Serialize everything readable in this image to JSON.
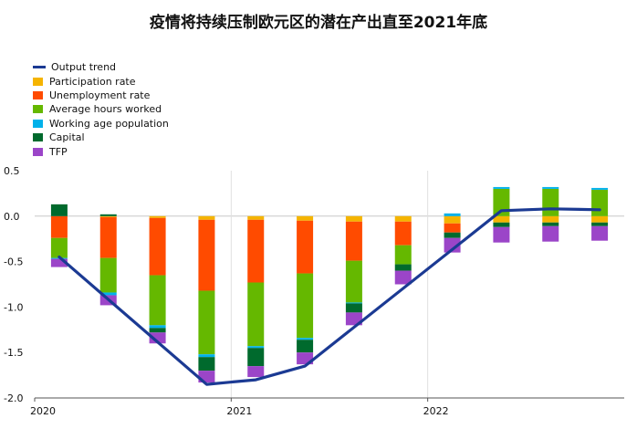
{
  "title": "疫情将持续压制欧元区的潜在产出直至2021年底",
  "chart_data": {
    "type": "bar",
    "stacked": true,
    "title": "疫情将持续压制欧元区的潜在产出直至2021年底",
    "xlabel": "",
    "ylabel": "",
    "ylim": [
      -2.0,
      0.5
    ],
    "yticks": [
      0.5,
      0.0,
      -0.5,
      -1.0,
      -1.5,
      -2.0
    ],
    "ytick_labels": [
      "0.5",
      "0.0",
      "-0.5",
      "-1.0",
      "-1.5",
      "-2.0"
    ],
    "xtick_labels": [
      "2020",
      "2021",
      "2022"
    ],
    "categories": [
      "2020Q1",
      "2020Q2",
      "2020Q3",
      "2020Q4",
      "2021Q1",
      "2021Q2",
      "2021Q3",
      "2021Q4",
      "2022Q1",
      "2022Q2",
      "2022Q3",
      "2022Q4"
    ],
    "grid": false,
    "legend_position": "top-left",
    "series": [
      {
        "name": "Participation rate",
        "color": "#f5b400",
        "values": [
          0.0,
          -0.01,
          -0.02,
          -0.04,
          -0.04,
          -0.05,
          -0.06,
          -0.06,
          -0.08,
          -0.07,
          -0.07,
          -0.07
        ]
      },
      {
        "name": "Unemployment rate",
        "color": "#ff4b00",
        "values": [
          -0.24,
          -0.45,
          -0.63,
          -0.78,
          -0.69,
          -0.58,
          -0.43,
          -0.26,
          -0.1,
          0.0,
          0.0,
          0.0
        ]
      },
      {
        "name": "Average hours worked",
        "color": "#65b800",
        "values": [
          -0.22,
          -0.38,
          -0.55,
          -0.7,
          -0.7,
          -0.71,
          -0.46,
          -0.21,
          0.0,
          0.3,
          0.3,
          0.29
        ]
      },
      {
        "name": "Working age population",
        "color": "#00b1ea",
        "values": [
          -0.01,
          -0.03,
          -0.03,
          -0.03,
          -0.02,
          -0.02,
          -0.01,
          0.0,
          0.03,
          0.02,
          0.02,
          0.02
        ]
      },
      {
        "name": "Capital",
        "color": "#006a2d",
        "values": [
          0.13,
          0.02,
          -0.05,
          -0.15,
          -0.2,
          -0.14,
          -0.1,
          -0.07,
          -0.06,
          -0.05,
          -0.04,
          -0.04
        ]
      },
      {
        "name": "TFP",
        "color": "#9b45c8",
        "values": [
          -0.09,
          -0.11,
          -0.12,
          -0.13,
          -0.12,
          -0.13,
          -0.14,
          -0.15,
          -0.16,
          -0.17,
          -0.17,
          -0.16
        ]
      }
    ],
    "line_series": {
      "name": "Output trend",
      "color": "#1b3a93",
      "x": [
        0,
        5
      ],
      "points": [
        {
          "x": "2020Q1",
          "y": -0.45
        },
        {
          "x": "2020Q4",
          "y": -1.85
        },
        {
          "x": "2021Q1",
          "y": -1.8
        },
        {
          "x": "2021Q2",
          "y": -1.65
        },
        {
          "x": "2022Q2",
          "y": 0.06
        },
        {
          "x": "2022Q3",
          "y": 0.08
        },
        {
          "x": "2022Q4",
          "y": 0.07
        }
      ]
    }
  }
}
